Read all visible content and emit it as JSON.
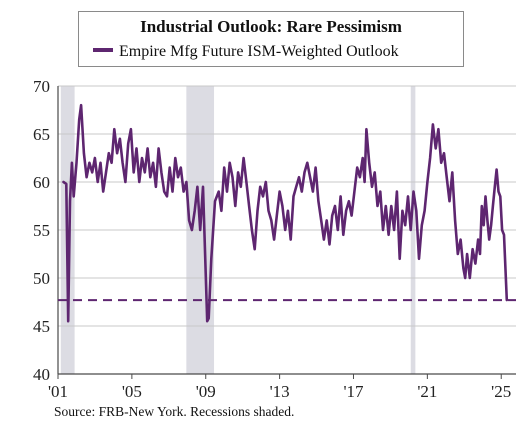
{
  "chart_data": {
    "type": "line",
    "title": "Industrial Outlook: Rare Pessimism",
    "source": "FRB-New York. Recessions shaded.",
    "source_label": "Source: FRB-New York. Recessions shaded.",
    "ylim": [
      40,
      70
    ],
    "yticks": [
      40,
      45,
      50,
      55,
      60,
      65,
      70
    ],
    "xlim": [
      2001.0,
      2025.8
    ],
    "xticks": [
      {
        "year": 2001,
        "label": "'01"
      },
      {
        "year": 2005,
        "label": "'05"
      },
      {
        "year": 2009,
        "label": "'09"
      },
      {
        "year": 2013,
        "label": "'13"
      },
      {
        "year": 2017,
        "label": "'17"
      },
      {
        "year": 2021,
        "label": "'21"
      },
      {
        "year": 2025,
        "label": "'25"
      }
    ],
    "recessions": [
      [
        2001.15,
        2001.9
      ],
      [
        2007.95,
        2009.45
      ],
      [
        2020.1,
        2020.35
      ]
    ],
    "reference_line": {
      "value": 47.7
    },
    "colors": {
      "series": "#5e2670",
      "recession": "#dcdce3",
      "grid": "#c9c9c9",
      "axis": "#4a4a4a"
    },
    "grid": "horizontal",
    "legend_position": "top-center",
    "series": [
      {
        "name": "Empire Mfg Future ISM-Weighted Outlook",
        "points": [
          [
            2001.3,
            60.0
          ],
          [
            2001.45,
            59.8
          ],
          [
            2001.55,
            45.5
          ],
          [
            2001.65,
            58.0
          ],
          [
            2001.75,
            62.0
          ],
          [
            2001.85,
            58.5
          ],
          [
            2002.0,
            62.0
          ],
          [
            2002.15,
            66.5
          ],
          [
            2002.25,
            68.0
          ],
          [
            2002.4,
            63.0
          ],
          [
            2002.55,
            60.5
          ],
          [
            2002.7,
            62.0
          ],
          [
            2002.85,
            61.0
          ],
          [
            2003.0,
            62.5
          ],
          [
            2003.15,
            60.0
          ],
          [
            2003.3,
            62.0
          ],
          [
            2003.45,
            59.0
          ],
          [
            2003.6,
            61.0
          ],
          [
            2003.75,
            63.0
          ],
          [
            2003.9,
            62.0
          ],
          [
            2004.05,
            65.5
          ],
          [
            2004.2,
            63.0
          ],
          [
            2004.35,
            64.5
          ],
          [
            2004.5,
            62.0
          ],
          [
            2004.65,
            60.0
          ],
          [
            2004.8,
            64.0
          ],
          [
            2004.95,
            65.5
          ],
          [
            2005.1,
            61.0
          ],
          [
            2005.25,
            63.5
          ],
          [
            2005.4,
            60.0
          ],
          [
            2005.55,
            62.5
          ],
          [
            2005.7,
            61.0
          ],
          [
            2005.85,
            63.5
          ],
          [
            2006.0,
            60.5
          ],
          [
            2006.15,
            62.0
          ],
          [
            2006.3,
            59.5
          ],
          [
            2006.45,
            63.5
          ],
          [
            2006.6,
            61.0
          ],
          [
            2006.75,
            59.0
          ],
          [
            2006.9,
            58.5
          ],
          [
            2007.05,
            61.5
          ],
          [
            2007.2,
            59.0
          ],
          [
            2007.35,
            62.5
          ],
          [
            2007.5,
            60.5
          ],
          [
            2007.65,
            61.5
          ],
          [
            2007.8,
            59.0
          ],
          [
            2007.95,
            60.0
          ],
          [
            2008.1,
            56.0
          ],
          [
            2008.25,
            55.0
          ],
          [
            2008.4,
            57.0
          ],
          [
            2008.55,
            59.5
          ],
          [
            2008.7,
            55.0
          ],
          [
            2008.85,
            59.5
          ],
          [
            2009.0,
            50.5
          ],
          [
            2009.08,
            45.5
          ],
          [
            2009.16,
            45.8
          ],
          [
            2009.3,
            52.0
          ],
          [
            2009.5,
            58.0
          ],
          [
            2009.7,
            59.0
          ],
          [
            2009.85,
            57.0
          ],
          [
            2010.0,
            61.5
          ],
          [
            2010.15,
            59.0
          ],
          [
            2010.3,
            62.0
          ],
          [
            2010.45,
            60.5
          ],
          [
            2010.6,
            57.5
          ],
          [
            2010.75,
            61.0
          ],
          [
            2010.9,
            59.5
          ],
          [
            2011.05,
            62.5
          ],
          [
            2011.2,
            60.0
          ],
          [
            2011.35,
            57.5
          ],
          [
            2011.5,
            55.0
          ],
          [
            2011.65,
            53.0
          ],
          [
            2011.8,
            57.0
          ],
          [
            2011.95,
            59.5
          ],
          [
            2012.1,
            58.5
          ],
          [
            2012.25,
            60.0
          ],
          [
            2012.4,
            57.0
          ],
          [
            2012.55,
            56.0
          ],
          [
            2012.7,
            54.0
          ],
          [
            2012.85,
            56.5
          ],
          [
            2013.0,
            59.0
          ],
          [
            2013.15,
            57.5
          ],
          [
            2013.3,
            55.0
          ],
          [
            2013.45,
            57.0
          ],
          [
            2013.6,
            54.0
          ],
          [
            2013.75,
            58.5
          ],
          [
            2013.9,
            59.5
          ],
          [
            2014.05,
            60.5
          ],
          [
            2014.2,
            59.0
          ],
          [
            2014.35,
            61.0
          ],
          [
            2014.5,
            62.0
          ],
          [
            2014.65,
            60.5
          ],
          [
            2014.8,
            59.0
          ],
          [
            2014.95,
            61.5
          ],
          [
            2015.1,
            58.0
          ],
          [
            2015.25,
            56.0
          ],
          [
            2015.4,
            54.0
          ],
          [
            2015.55,
            56.0
          ],
          [
            2015.7,
            53.5
          ],
          [
            2015.85,
            56.5
          ],
          [
            2016.0,
            57.5
          ],
          [
            2016.15,
            55.0
          ],
          [
            2016.3,
            58.5
          ],
          [
            2016.45,
            54.5
          ],
          [
            2016.6,
            57.0
          ],
          [
            2016.75,
            58.0
          ],
          [
            2016.9,
            56.5
          ],
          [
            2017.05,
            59.0
          ],
          [
            2017.2,
            61.5
          ],
          [
            2017.35,
            60.5
          ],
          [
            2017.5,
            62.5
          ],
          [
            2017.6,
            60.0
          ],
          [
            2017.7,
            65.5
          ],
          [
            2017.85,
            62.0
          ],
          [
            2018.0,
            59.5
          ],
          [
            2018.15,
            61.0
          ],
          [
            2018.3,
            57.5
          ],
          [
            2018.45,
            59.0
          ],
          [
            2018.6,
            55.0
          ],
          [
            2018.75,
            57.5
          ],
          [
            2018.9,
            54.5
          ],
          [
            2019.05,
            57.5
          ],
          [
            2019.2,
            55.0
          ],
          [
            2019.35,
            59.0
          ],
          [
            2019.5,
            52.0
          ],
          [
            2019.65,
            57.0
          ],
          [
            2019.8,
            55.5
          ],
          [
            2019.95,
            58.5
          ],
          [
            2020.1,
            55.0
          ],
          [
            2020.25,
            59.0
          ],
          [
            2020.4,
            57.0
          ],
          [
            2020.55,
            52.0
          ],
          [
            2020.7,
            55.5
          ],
          [
            2020.85,
            57.0
          ],
          [
            2021.0,
            60.0
          ],
          [
            2021.15,
            62.5
          ],
          [
            2021.3,
            66.0
          ],
          [
            2021.45,
            63.5
          ],
          [
            2021.6,
            65.5
          ],
          [
            2021.75,
            62.0
          ],
          [
            2021.9,
            63.0
          ],
          [
            2022.05,
            60.5
          ],
          [
            2022.2,
            58.0
          ],
          [
            2022.35,
            61.0
          ],
          [
            2022.5,
            56.0
          ],
          [
            2022.65,
            52.5
          ],
          [
            2022.8,
            54.0
          ],
          [
            2022.95,
            51.0
          ],
          [
            2023.05,
            50.0
          ],
          [
            2023.15,
            52.5
          ],
          [
            2023.3,
            50.0
          ],
          [
            2023.45,
            53.0
          ],
          [
            2023.6,
            51.5
          ],
          [
            2023.75,
            54.0
          ],
          [
            2023.85,
            52.5
          ],
          [
            2023.95,
            57.5
          ],
          [
            2024.05,
            55.5
          ],
          [
            2024.15,
            58.5
          ],
          [
            2024.25,
            56.0
          ],
          [
            2024.35,
            54.0
          ],
          [
            2024.45,
            55.5
          ],
          [
            2024.55,
            57.5
          ],
          [
            2024.65,
            59.5
          ],
          [
            2024.75,
            61.3
          ],
          [
            2024.85,
            59.0
          ],
          [
            2024.95,
            58.5
          ],
          [
            2025.05,
            55.0
          ],
          [
            2025.15,
            54.5
          ],
          [
            2025.3,
            47.7
          ]
        ]
      }
    ]
  }
}
